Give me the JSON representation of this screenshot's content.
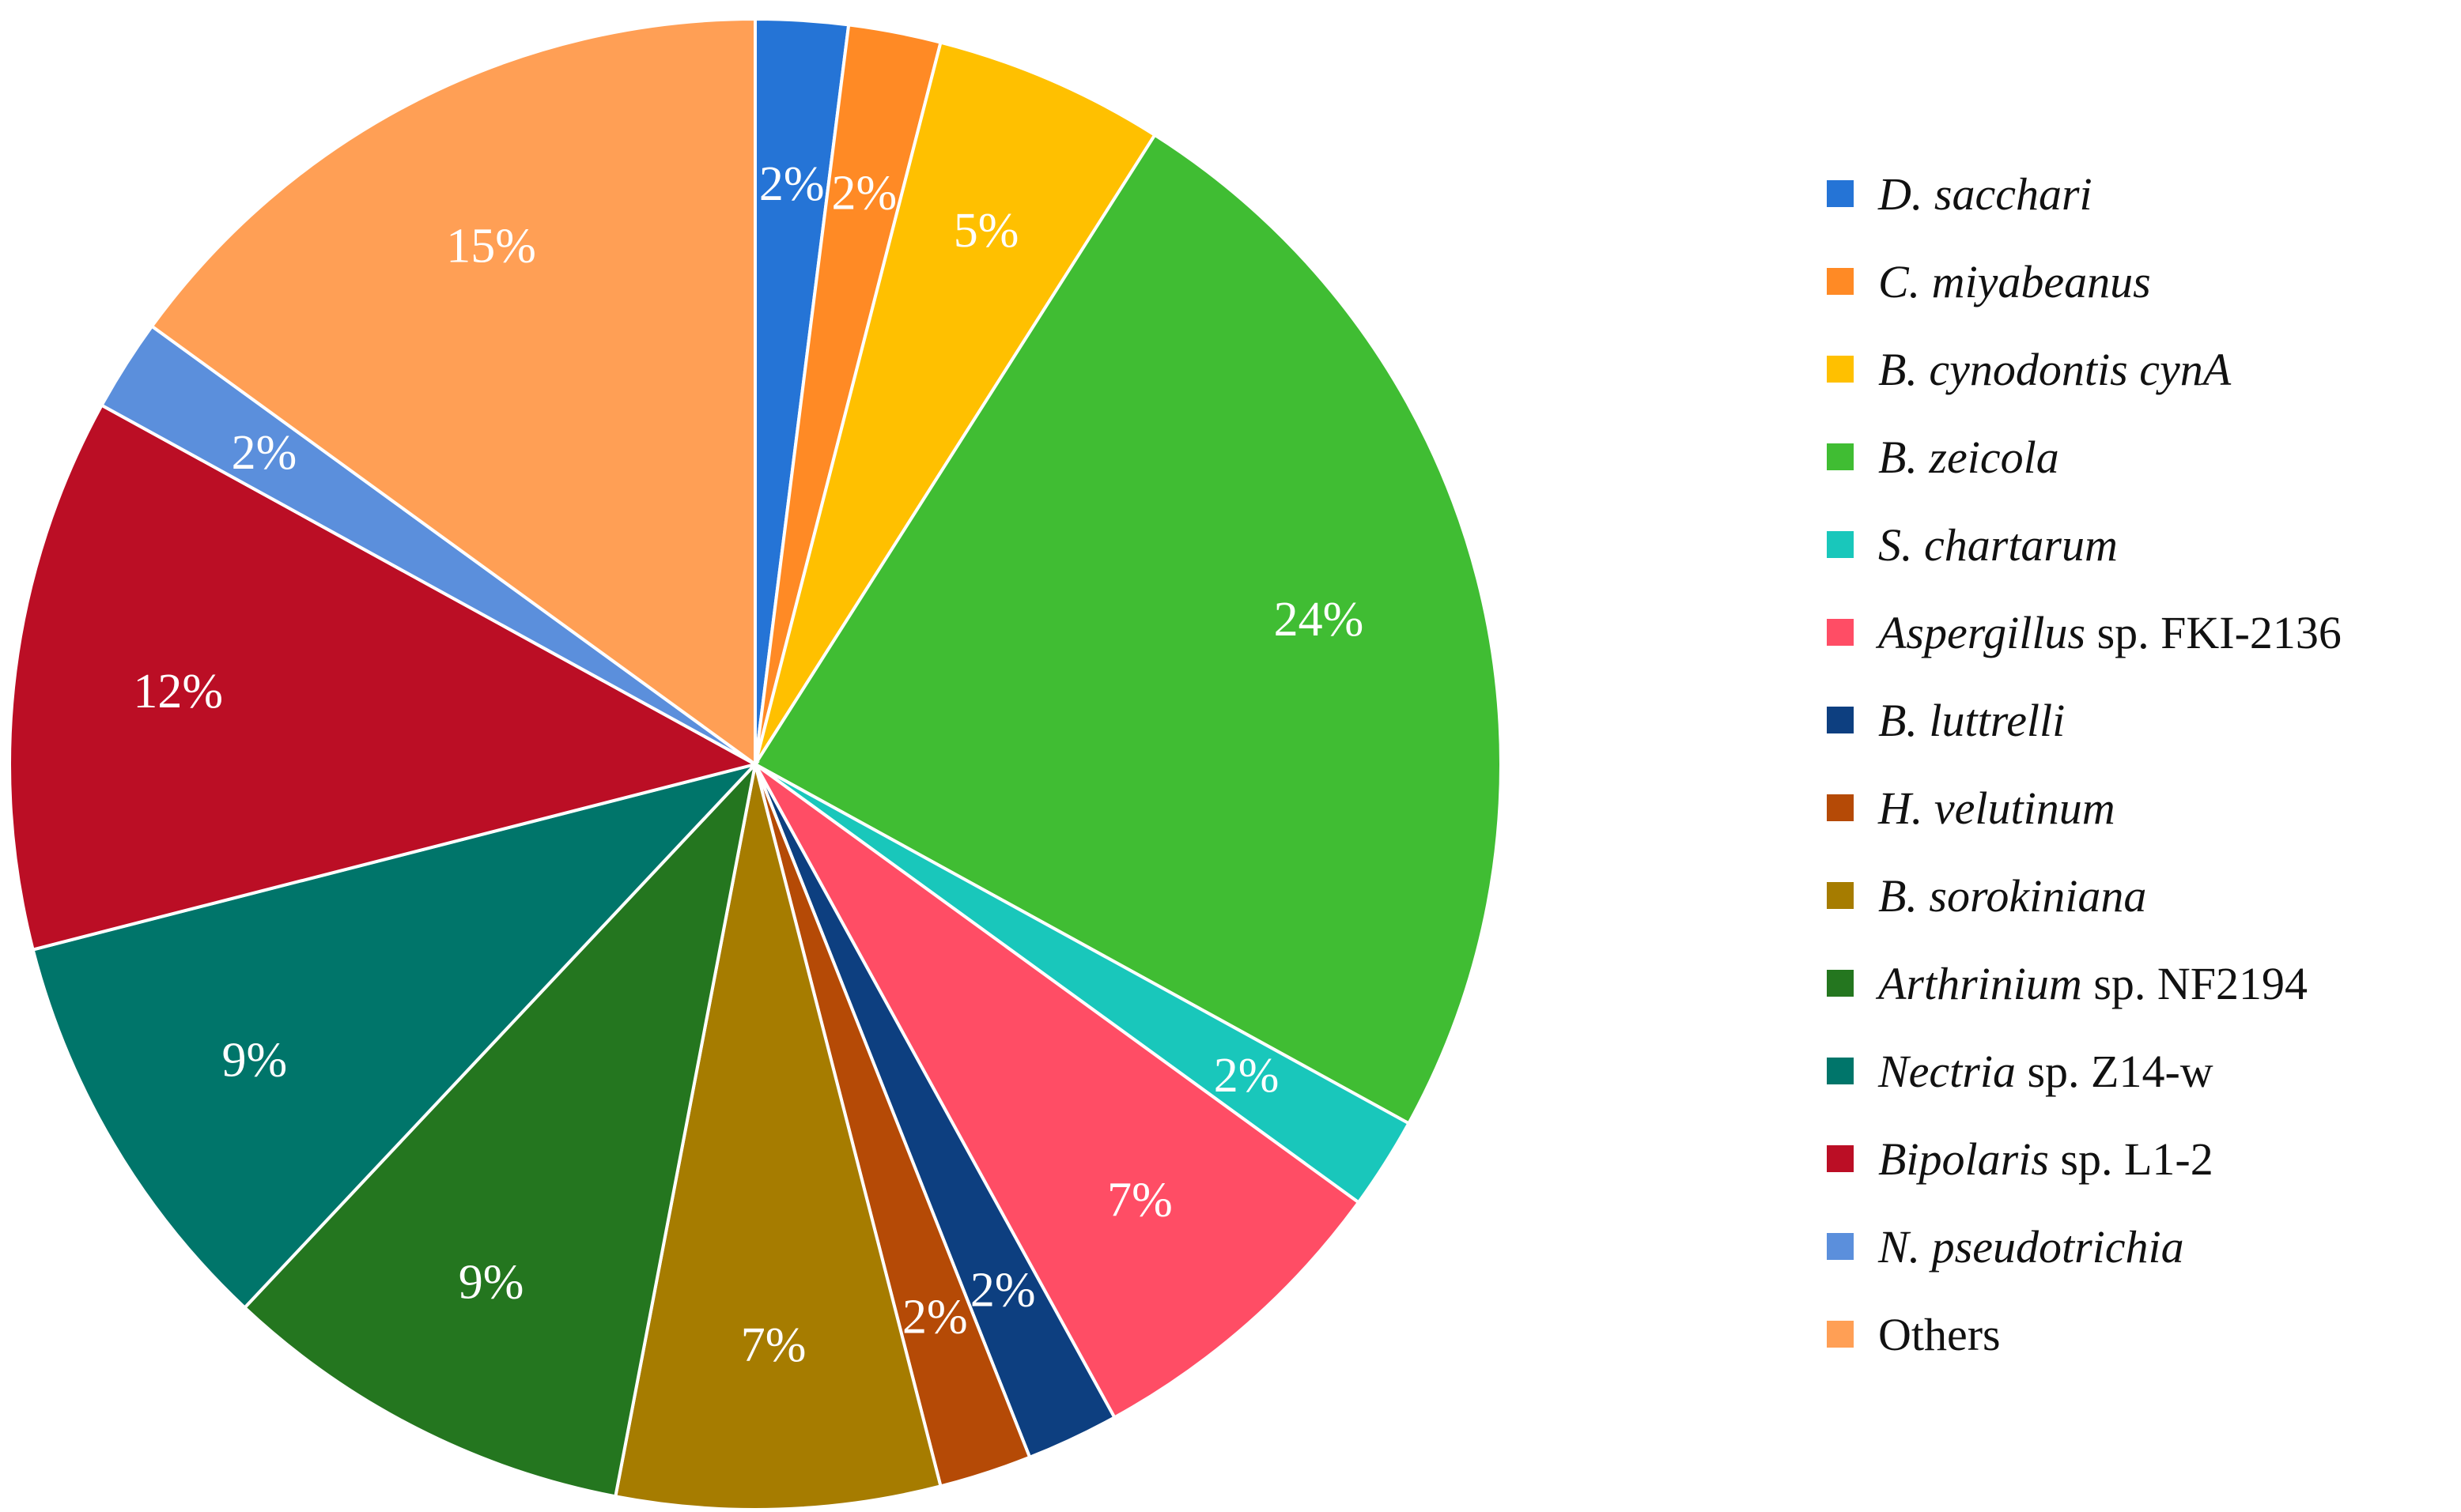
{
  "chart_data": {
    "type": "pie",
    "start_angle_deg": 0,
    "direction": "clockwise",
    "legend_position": "right",
    "label_color": "#ffffff",
    "slices": [
      {
        "name_italic": "D. sacchari",
        "name_rest": "",
        "value": 2,
        "label": "2%",
        "color": "#2574d6"
      },
      {
        "name_italic": "C. miyabeanus",
        "name_rest": "",
        "value": 2,
        "label": "2%",
        "color": "#ff8a25"
      },
      {
        "name_italic": "B. cynodontis cynA",
        "name_rest": "",
        "value": 5,
        "label": "5%",
        "color": "#ffc000"
      },
      {
        "name_italic": "B. zeicola",
        "name_rest": "",
        "value": 24,
        "label": "24%",
        "color": "#40bd33"
      },
      {
        "name_italic": "S. chartarum",
        "name_rest": "",
        "value": 2,
        "label": "2%",
        "color": "#19c7bb"
      },
      {
        "name_italic": "Aspergillus",
        "name_rest": " sp. FKI-2136",
        "value": 7,
        "label": "7%",
        "color": "#ff4d65"
      },
      {
        "name_italic": "B. luttrelli",
        "name_rest": "",
        "value": 2,
        "label": "2%",
        "color": "#0d3f80"
      },
      {
        "name_italic": "H. velutinum",
        "name_rest": "",
        "value": 2,
        "label": "2%",
        "color": "#b54a06"
      },
      {
        "name_italic": "B. sorokiniana",
        "name_rest": "",
        "value": 7,
        "label": "7%",
        "color": "#a67c00"
      },
      {
        "name_italic": "Arthrinium",
        "name_rest": " sp. NF2194",
        "value": 9,
        "label": "9%",
        "color": "#24761f"
      },
      {
        "name_italic": "Nectria",
        "name_rest": " sp. Z14-w",
        "value": 9,
        "label": "9%",
        "color": "#00756a"
      },
      {
        "name_italic": "Bipolaris",
        "name_rest": " sp. L1-2",
        "value": 12,
        "label": "12%",
        "color": "#bb0e25"
      },
      {
        "name_italic": "N. pseudotrichia",
        "name_rest": "",
        "value": 2,
        "label": "2%",
        "color": "#5b8fdc"
      },
      {
        "name_italic": "",
        "name_rest": "Others",
        "value": 15,
        "label": "15%",
        "color": "#ff9f55"
      }
    ]
  }
}
